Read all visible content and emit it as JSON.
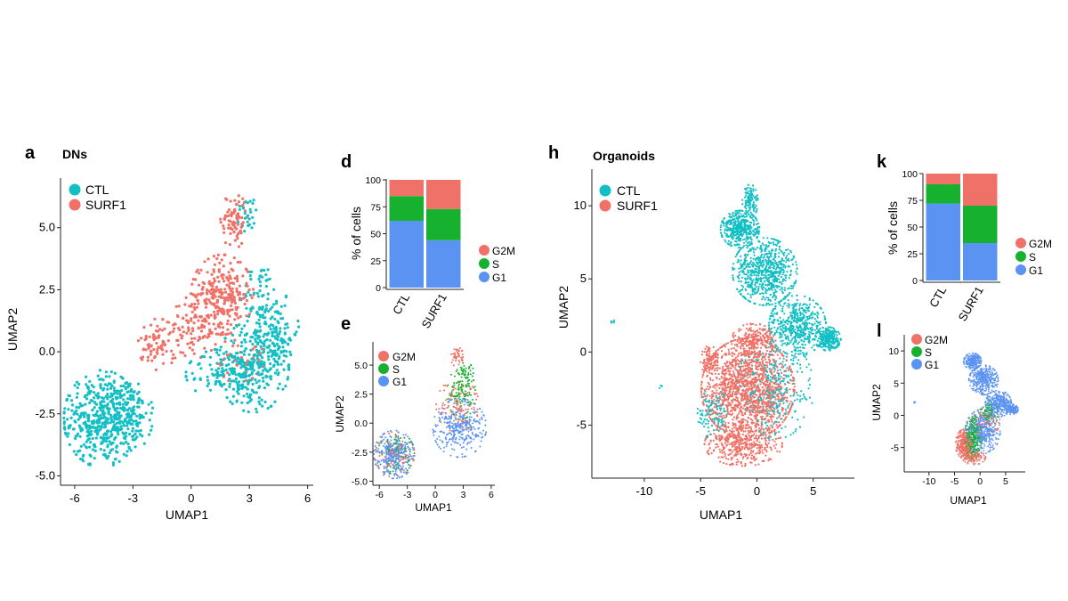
{
  "colors": {
    "ctl": "#12BFC4",
    "surf1": "#F07167",
    "g2m": "#F07167",
    "s": "#16B22F",
    "g1": "#5B93F2",
    "axis": "#222222"
  },
  "panel_labels": {
    "a": "a",
    "d": "d",
    "e": "e",
    "h": "h",
    "k": "k",
    "l": "l"
  },
  "titles": {
    "a": "DNs",
    "h": "Organoids"
  },
  "legends": {
    "condition": [
      "CTL",
      "SURF1"
    ],
    "phase": [
      "G2M",
      "S",
      "G1"
    ]
  },
  "chart_data": [
    {
      "id": "a",
      "type": "scatter",
      "title": "DNs",
      "xlabel": "UMAP1",
      "ylabel": "UMAP2",
      "xlim": [
        -6.5,
        6.2
      ],
      "ylim": [
        -5.2,
        7.0
      ],
      "xticks": [
        "-6",
        "-3",
        "0",
        "3",
        "6"
      ],
      "xtick_values": [
        -6,
        -3,
        0,
        3,
        6
      ],
      "yticks": [
        "-5.0",
        "-2.5",
        "0.0",
        "2.5",
        "5.0"
      ],
      "ytick_values": [
        -5,
        -2.5,
        0,
        2.5,
        5
      ],
      "groups": [
        "CTL",
        "SURF1"
      ],
      "clusters": [
        {
          "group": "CTL",
          "cx": -4.6,
          "cy": -2.7,
          "rx": 1.7,
          "ry": 1.7,
          "n": 460
        },
        {
          "group": "CTL",
          "cx": -3.1,
          "cy": -2.6,
          "rx": 1.0,
          "ry": 1.2,
          "n": 120
        },
        {
          "group": "CTL",
          "cx": 3.2,
          "cy": -0.6,
          "rx": 1.6,
          "ry": 1.6,
          "n": 260
        },
        {
          "group": "CTL",
          "cx": 4.4,
          "cy": 0.8,
          "rx": 1.0,
          "ry": 1.4,
          "n": 110
        },
        {
          "group": "CTL",
          "cx": 1.8,
          "cy": -0.9,
          "rx": 1.8,
          "ry": 0.9,
          "n": 110
        },
        {
          "group": "CTL",
          "cx": 3.6,
          "cy": 2.2,
          "rx": 0.9,
          "ry": 1.2,
          "n": 60
        },
        {
          "group": "CTL",
          "cx": 2.9,
          "cy": 5.6,
          "rx": 0.5,
          "ry": 0.7,
          "n": 25
        },
        {
          "group": "SURF1",
          "cx": 1.6,
          "cy": 2.3,
          "rx": 1.4,
          "ry": 1.4,
          "n": 260
        },
        {
          "group": "SURF1",
          "cx": 2.2,
          "cy": 5.3,
          "rx": 0.6,
          "ry": 1.0,
          "n": 85
        },
        {
          "group": "SURF1",
          "cx": -1.7,
          "cy": 0.3,
          "rx": 0.9,
          "ry": 0.9,
          "n": 80
        },
        {
          "group": "SURF1",
          "cx": 0.2,
          "cy": 1.0,
          "rx": 1.1,
          "ry": 1.1,
          "n": 90
        },
        {
          "group": "SURF1",
          "cx": 2.4,
          "cy": -0.3,
          "rx": 1.2,
          "ry": 0.8,
          "n": 35
        }
      ]
    },
    {
      "id": "d",
      "type": "bar",
      "stacked": true,
      "categories": [
        "CTL",
        "SURF1"
      ],
      "ylabel": "% of cells",
      "ylim": [
        0,
        100
      ],
      "yticks": [
        "0",
        "25",
        "50",
        "75",
        "100"
      ],
      "ytick_values": [
        0,
        25,
        50,
        75,
        100
      ],
      "series": [
        {
          "name": "G1",
          "values": [
            62,
            44
          ]
        },
        {
          "name": "S",
          "values": [
            23,
            29
          ]
        },
        {
          "name": "G2M",
          "values": [
            15,
            27
          ]
        }
      ]
    },
    {
      "id": "e",
      "type": "scatter",
      "xlabel": "UMAP1",
      "ylabel": "UMAP2",
      "xlim": [
        -6.5,
        6.2
      ],
      "ylim": [
        -5.2,
        7.0
      ],
      "xticks": [
        "-6",
        "-3",
        "0",
        "3",
        "6"
      ],
      "xtick_values": [
        -6,
        -3,
        0,
        3,
        6
      ],
      "yticks": [
        "-5.0",
        "-2.5",
        "0.0",
        "2.5",
        "5.0"
      ],
      "ytick_values": [
        -5,
        -2.5,
        0,
        2.5,
        5
      ],
      "groups": [
        "G2M",
        "S",
        "G1"
      ],
      "clusters": [
        {
          "group": "G1",
          "cx": -4.4,
          "cy": -2.7,
          "rx": 1.9,
          "ry": 1.8,
          "n": 300
        },
        {
          "group": "G1",
          "cx": 2.6,
          "cy": -0.4,
          "rx": 2.5,
          "ry": 2.2,
          "n": 320
        },
        {
          "group": "G2M",
          "cx": -4.4,
          "cy": -2.7,
          "rx": 1.8,
          "ry": 1.7,
          "n": 90
        },
        {
          "group": "G2M",
          "cx": 2.4,
          "cy": 1.5,
          "rx": 2.0,
          "ry": 2.0,
          "n": 110
        },
        {
          "group": "G2M",
          "cx": 2.3,
          "cy": 5.8,
          "rx": 0.6,
          "ry": 0.8,
          "n": 45
        },
        {
          "group": "S",
          "cx": -4.2,
          "cy": -2.6,
          "rx": 1.7,
          "ry": 1.6,
          "n": 80
        },
        {
          "group": "S",
          "cx": 2.8,
          "cy": 2.6,
          "rx": 1.3,
          "ry": 2.0,
          "n": 110
        },
        {
          "group": "S",
          "cx": 3.2,
          "cy": 4.4,
          "rx": 0.8,
          "ry": 0.7,
          "n": 40
        }
      ]
    },
    {
      "id": "h",
      "type": "scatter",
      "title": "Organoids",
      "xlabel": "UMAP1",
      "ylabel": "UMAP2",
      "xlim": [
        -14.5,
        8.5
      ],
      "ylim": [
        -8.5,
        12.5
      ],
      "xticks": [
        "-10",
        "-5",
        "0",
        "5"
      ],
      "xtick_values": [
        -10,
        -5,
        0,
        5
      ],
      "yticks": [
        "-5",
        "0",
        "5",
        "10"
      ],
      "ytick_values": [
        -5,
        0,
        5,
        10
      ],
      "groups": [
        "CTL",
        "SURF1"
      ],
      "clusters": [
        {
          "group": "CTL",
          "cx": -1.5,
          "cy": 8.4,
          "rx": 1.5,
          "ry": 1.1,
          "n": 420
        },
        {
          "group": "CTL",
          "cx": -0.6,
          "cy": 10.3,
          "rx": 0.6,
          "ry": 1.0,
          "n": 120
        },
        {
          "group": "CTL",
          "cx": 0.7,
          "cy": 5.5,
          "rx": 2.5,
          "ry": 2.0,
          "n": 700
        },
        {
          "group": "CTL",
          "cx": 3.6,
          "cy": 1.8,
          "rx": 2.2,
          "ry": 1.8,
          "n": 520
        },
        {
          "group": "CTL",
          "cx": 6.3,
          "cy": 0.9,
          "rx": 1.0,
          "ry": 0.7,
          "n": 240
        },
        {
          "group": "CTL",
          "cx": 1.6,
          "cy": -2.5,
          "rx": 3.0,
          "ry": 3.0,
          "n": 320
        },
        {
          "group": "CTL",
          "cx": -3.9,
          "cy": -4.2,
          "rx": 1.2,
          "ry": 1.5,
          "n": 120
        },
        {
          "group": "CTL",
          "cx": -12.8,
          "cy": 2.0,
          "rx": 0.2,
          "ry": 0.2,
          "n": 6
        },
        {
          "group": "CTL",
          "cx": -8.5,
          "cy": -2.4,
          "rx": 0.15,
          "ry": 0.15,
          "n": 4
        },
        {
          "group": "SURF1",
          "cx": -0.8,
          "cy": -2.5,
          "rx": 3.6,
          "ry": 3.0,
          "n": 1500
        },
        {
          "group": "SURF1",
          "cx": -1.2,
          "cy": -6.3,
          "rx": 3.0,
          "ry": 1.3,
          "n": 420
        },
        {
          "group": "SURF1",
          "cx": -0.3,
          "cy": 0.8,
          "rx": 1.7,
          "ry": 1.0,
          "n": 240
        },
        {
          "group": "SURF1",
          "cx": -4.2,
          "cy": -0.6,
          "rx": 0.7,
          "ry": 0.9,
          "n": 90
        }
      ]
    },
    {
      "id": "k",
      "type": "bar",
      "stacked": true,
      "categories": [
        "CTL",
        "SURF1"
      ],
      "ylabel": "% of cells",
      "ylim": [
        0,
        100
      ],
      "yticks": [
        "0",
        "25",
        "50",
        "75",
        "100"
      ],
      "ytick_values": [
        0,
        25,
        50,
        75,
        100
      ],
      "series": [
        {
          "name": "G1",
          "values": [
            72,
            35
          ]
        },
        {
          "name": "S",
          "values": [
            18,
            35
          ]
        },
        {
          "name": "G2M",
          "values": [
            10,
            30
          ]
        }
      ]
    },
    {
      "id": "l",
      "type": "scatter",
      "xlabel": "UMAP1",
      "ylabel": "UMAP2",
      "xlim": [
        -14.5,
        8.5
      ],
      "ylim": [
        -8.5,
        12.5
      ],
      "xticks": [
        "-10",
        "-5",
        "0",
        "5"
      ],
      "xtick_values": [
        -10,
        -5,
        0,
        5
      ],
      "yticks": [
        "-5",
        "0",
        "5",
        "10"
      ],
      "ytick_values": [
        -5,
        0,
        5,
        10
      ],
      "groups": [
        "G2M",
        "S",
        "G1"
      ],
      "clusters": [
        {
          "group": "G1",
          "cx": -1.5,
          "cy": 8.4,
          "rx": 1.5,
          "ry": 1.1,
          "n": 260
        },
        {
          "group": "G1",
          "cx": 0.7,
          "cy": 5.5,
          "rx": 2.5,
          "ry": 2.0,
          "n": 400
        },
        {
          "group": "G1",
          "cx": 3.6,
          "cy": 1.8,
          "rx": 2.2,
          "ry": 1.8,
          "n": 340
        },
        {
          "group": "G1",
          "cx": 6.3,
          "cy": 0.9,
          "rx": 1.0,
          "ry": 0.7,
          "n": 140
        },
        {
          "group": "G1",
          "cx": 0.5,
          "cy": -2.5,
          "rx": 3.0,
          "ry": 3.0,
          "n": 420
        },
        {
          "group": "G1",
          "cx": -12.8,
          "cy": 2.0,
          "rx": 0.2,
          "ry": 0.2,
          "n": 5
        },
        {
          "group": "G2M",
          "cx": -3.2,
          "cy": -4.5,
          "rx": 1.4,
          "ry": 2.0,
          "n": 320
        },
        {
          "group": "G2M",
          "cx": -1.2,
          "cy": -6.5,
          "rx": 2.0,
          "ry": 1.0,
          "n": 140
        },
        {
          "group": "G2M",
          "cx": 1.0,
          "cy": -1.0,
          "rx": 2.5,
          "ry": 2.0,
          "n": 90
        },
        {
          "group": "S",
          "cx": -1.3,
          "cy": -3.5,
          "rx": 1.4,
          "ry": 3.0,
          "n": 320
        },
        {
          "group": "S",
          "cx": 1.8,
          "cy": 0.5,
          "rx": 1.5,
          "ry": 1.5,
          "n": 90
        }
      ]
    }
  ]
}
